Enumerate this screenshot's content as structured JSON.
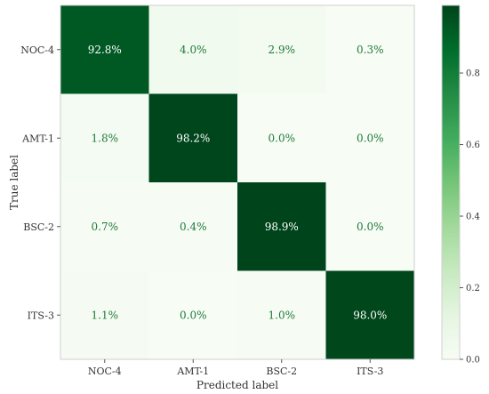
{
  "chart_data": {
    "type": "heatmap",
    "title": "",
    "xlabel": "Predicted label",
    "ylabel": "True label",
    "x_categories": [
      "NOC-4",
      "AMT-1",
      "BSC-2",
      "ITS-3"
    ],
    "y_categories": [
      "NOC-4",
      "AMT-1",
      "BSC-2",
      "ITS-3"
    ],
    "values": [
      [
        0.928,
        0.04,
        0.029,
        0.003
      ],
      [
        0.018,
        0.982,
        0.0,
        0.0
      ],
      [
        0.007,
        0.004,
        0.989,
        0.0
      ],
      [
        0.011,
        0.0,
        0.01,
        0.98
      ]
    ],
    "cell_labels": [
      [
        "92.8%",
        "4.0%",
        "2.9%",
        "0.3%"
      ],
      [
        "1.8%",
        "98.2%",
        "0.0%",
        "0.0%"
      ],
      [
        "0.7%",
        "0.4%",
        "98.9%",
        "0.0%"
      ],
      [
        "1.1%",
        "0.0%",
        "1.0%",
        "98.0%"
      ]
    ],
    "colorbar": {
      "colormap": "Greens",
      "range": [
        0.0,
        0.989
      ],
      "ticks": [
        0.0,
        0.2,
        0.4,
        0.6,
        0.8
      ],
      "tick_labels": [
        "0.0",
        "0.2",
        "0.4",
        "0.6",
        "0.8"
      ]
    },
    "colors": {
      "low": "#f7fcf5",
      "high": "#00441b",
      "label_light_cell": "#1f7a3a",
      "label_dark_cell": "#ffffff"
    },
    "grid": false
  }
}
